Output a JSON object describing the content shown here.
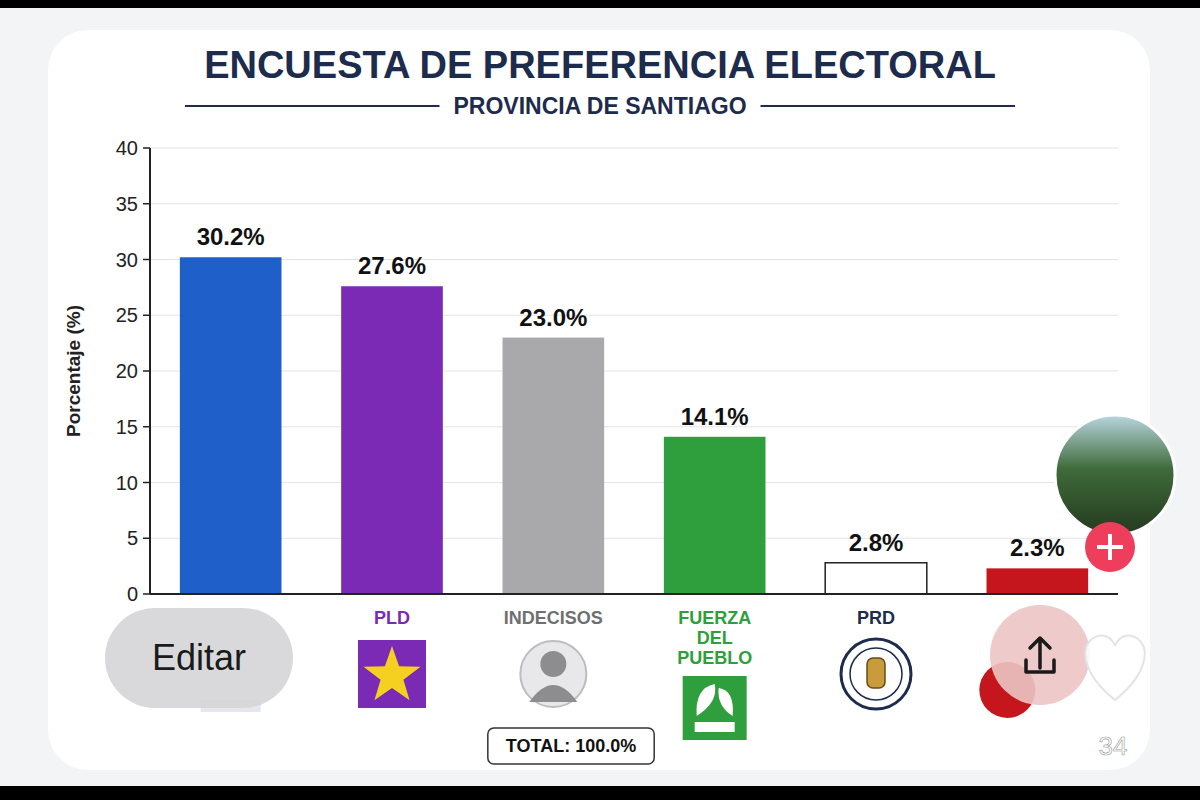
{
  "chart_data": {
    "type": "bar",
    "title": "ENCUESTA DE PREFERENCIA ELECTORAL",
    "subtitle": "PROVINCIA DE SANTIAGO",
    "ylabel": "Porcentaje (%)",
    "categories": [
      null,
      "PLD",
      "INDECISOS",
      "FUERZA DEL PUEBLO",
      "PRD",
      null
    ],
    "values": [
      30.2,
      27.6,
      23.0,
      14.1,
      2.8,
      2.3
    ],
    "value_labels": [
      "30.2%",
      "27.6%",
      "23.0%",
      "14.1%",
      "2.8%",
      "2.3%"
    ],
    "colors": [
      "#1e5fc9",
      "#7a2ab5",
      "#a9a9ab",
      "#2f9e3c",
      "#ffffff",
      "#c4161c"
    ],
    "ylim": [
      0,
      40
    ],
    "yticks": [
      0,
      5,
      10,
      15,
      20,
      25,
      30,
      35,
      40
    ],
    "grid": true,
    "data_labels": true,
    "annotations": [
      "TOTAL: 100.0%"
    ]
  },
  "overlay": {
    "edit_button": "Editar",
    "likes": 34
  }
}
